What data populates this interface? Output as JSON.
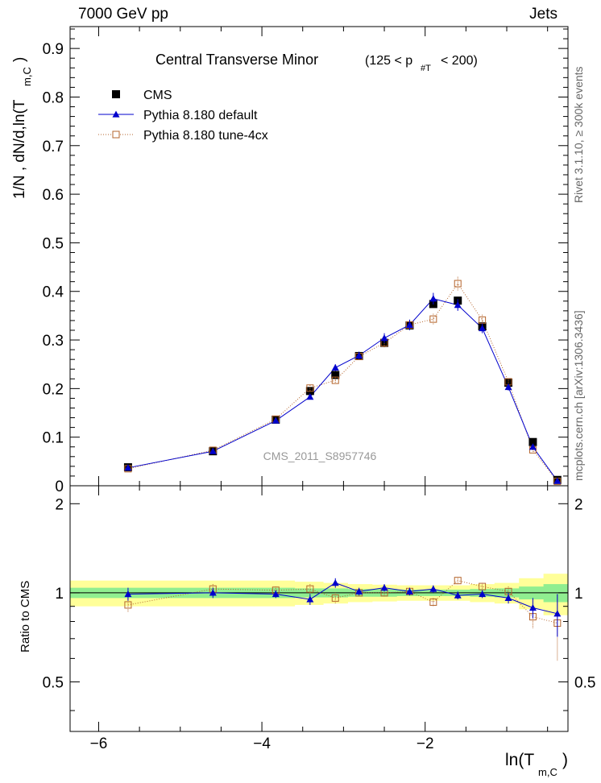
{
  "header": {
    "left": "7000 GeV pp",
    "right": "Jets"
  },
  "side_labels": {
    "rivet": "Rivet 3.1.10, ≥ 300k events",
    "mcplots": "mcplots.cern.ch [arXiv:1306.3436]"
  },
  "chart_data": [
    {
      "type": "scatter",
      "title": "Central Transverse Minor",
      "title_cut": "(125 < p",
      "title_cut_sub": "#T",
      "title_cut_end": "< 200)",
      "ylabel": "1/N , dN/d,ln(T",
      "ylabel_sub": "m,C",
      "ylabel_end": ")",
      "watermark": "CMS_2011_S8957746",
      "xlim": [
        -6.35,
        -0.25
      ],
      "ylim": [
        0,
        0.945
      ],
      "y_ticks": [
        0,
        0.1,
        0.2,
        0.3,
        0.4,
        0.5,
        0.6,
        0.7,
        0.8,
        0.9
      ],
      "y_tick_labels": [
        "0",
        "0.1",
        "0.2",
        "0.3",
        "0.4",
        "0.5",
        "0.6",
        "0.7",
        "0.8",
        "0.9"
      ],
      "legend_position": "top-left",
      "colors": {
        "cms": "#000000",
        "default": "#0000cc",
        "tune": "#b5652c"
      },
      "series": [
        {
          "name": "CMS",
          "marker": "filled-square",
          "x": [
            -5.64,
            -4.6,
            -3.83,
            -3.41,
            -3.1,
            -2.81,
            -2.5,
            -2.19,
            -1.9,
            -1.6,
            -1.3,
            -0.98,
            -0.68,
            -0.38
          ],
          "y": [
            0.038,
            0.071,
            0.136,
            0.195,
            0.228,
            0.267,
            0.294,
            0.33,
            0.374,
            0.381,
            0.328,
            0.212,
            0.09,
            0.012
          ]
        },
        {
          "name": "Pythia 8.180 default",
          "marker": "filled-triangle",
          "x": [
            -5.64,
            -4.6,
            -3.83,
            -3.41,
            -3.1,
            -2.81,
            -2.5,
            -2.19,
            -1.9,
            -1.6,
            -1.3,
            -0.98,
            -0.68,
            -0.38
          ],
          "y": [
            0.037,
            0.071,
            0.134,
            0.183,
            0.243,
            0.268,
            0.304,
            0.331,
            0.385,
            0.372,
            0.324,
            0.203,
            0.08,
            0.01
          ],
          "err": [
            0.002,
            0.002,
            0.003,
            0.005,
            0.007,
            0.008,
            0.01,
            0.011,
            0.012,
            0.012,
            0.01,
            0.007,
            0.004,
            0.002
          ]
        },
        {
          "name": "Pythia 8.180 tune-4cx",
          "marker": "open-square",
          "x": [
            -5.64,
            -4.6,
            -3.83,
            -3.41,
            -3.1,
            -2.81,
            -2.5,
            -2.19,
            -1.9,
            -1.6,
            -1.3,
            -0.98,
            -0.68,
            -0.38
          ],
          "y": [
            0.035,
            0.073,
            0.137,
            0.201,
            0.217,
            0.266,
            0.294,
            0.331,
            0.343,
            0.416,
            0.341,
            0.214,
            0.074,
            0.009
          ],
          "err": [
            0.002,
            0.002,
            0.004,
            0.006,
            0.007,
            0.008,
            0.009,
            0.01,
            0.011,
            0.014,
            0.011,
            0.007,
            0.004,
            0.002
          ]
        }
      ]
    },
    {
      "type": "scatter",
      "title": "",
      "ylabel": "Ratio to CMS",
      "xlabel": "ln(T",
      "xlabel_sub": "m,C",
      "xlabel_end": ")",
      "xlim": [
        -6.35,
        -0.25
      ],
      "ylim": [
        0.34,
        2.3
      ],
      "x_ticks": [
        -6,
        -4,
        -2
      ],
      "x_tick_labels": [
        "−6",
        "−4",
        "−2"
      ],
      "y_ticks": [
        0.5,
        1,
        2
      ],
      "y_tick_labels": [
        "0.5",
        "1",
        "2"
      ],
      "bands": {
        "x_edges": [
          -6.35,
          -4.7,
          -4.1,
          -3.6,
          -3.25,
          -2.95,
          -2.65,
          -2.35,
          -2.05,
          -1.75,
          -1.45,
          -1.15,
          -0.85,
          -0.55,
          -0.2
        ],
        "inner": [
          0.04,
          0.04,
          0.04,
          0.035,
          0.035,
          0.03,
          0.03,
          0.025,
          0.025,
          0.025,
          0.03,
          0.035,
          0.05,
          0.07
        ],
        "outer": [
          0.1,
          0.1,
          0.1,
          0.09,
          0.08,
          0.07,
          0.065,
          0.06,
          0.06,
          0.06,
          0.07,
          0.08,
          0.12,
          0.16
        ],
        "inner_color": "#90ee90",
        "outer_color": "#ffff99"
      },
      "series": [
        {
          "name": "Pythia 8.180 default",
          "x": [
            -5.64,
            -4.6,
            -3.83,
            -3.41,
            -3.1,
            -2.81,
            -2.5,
            -2.19,
            -1.9,
            -1.6,
            -1.3,
            -0.98,
            -0.68,
            -0.38
          ],
          "y": [
            0.99,
            1.0,
            0.99,
            0.95,
            1.08,
            1.01,
            1.04,
            1.01,
            1.03,
            0.98,
            0.99,
            0.96,
            0.89,
            0.85
          ],
          "err": [
            0.05,
            0.04,
            0.03,
            0.04,
            0.04,
            0.03,
            0.03,
            0.03,
            0.03,
            0.03,
            0.03,
            0.04,
            0.07,
            0.14
          ]
        },
        {
          "name": "Pythia 8.180 tune-4cx",
          "x": [
            -5.64,
            -4.6,
            -3.83,
            -3.41,
            -3.1,
            -2.81,
            -2.5,
            -2.19,
            -1.9,
            -1.6,
            -1.3,
            -0.98,
            -0.68,
            -0.38
          ],
          "y": [
            0.91,
            1.03,
            1.02,
            1.03,
            0.96,
            1.0,
            1.0,
            1.01,
            0.93,
            1.1,
            1.05,
            1.01,
            0.83,
            0.79
          ],
          "err": [
            0.05,
            0.04,
            0.03,
            0.04,
            0.04,
            0.03,
            0.03,
            0.03,
            0.03,
            0.03,
            0.03,
            0.04,
            0.07,
            0.2
          ]
        }
      ]
    }
  ]
}
